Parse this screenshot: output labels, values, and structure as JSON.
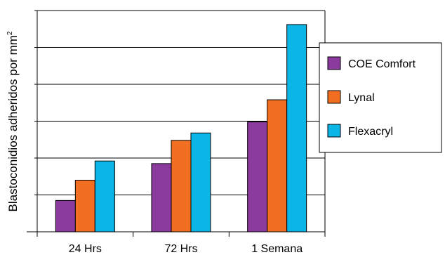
{
  "chart_data": {
    "type": "bar",
    "title": "",
    "xlabel": "",
    "ylabel": "Blastoconidios adheridos por mm",
    "ylabel_superscript": "2",
    "categories": [
      "24 Hrs",
      "72 Hrs",
      "1 Semana"
    ],
    "ylim": [
      0,
      6
    ],
    "y_ticks": [
      0,
      1,
      2,
      3,
      4,
      5,
      6
    ],
    "y_tick_labels_shown": false,
    "grid": true,
    "legend_position": "right",
    "series": [
      {
        "name": "COE Comfort",
        "color": "#8B3A9E",
        "values": [
          0.85,
          1.85,
          2.98
        ]
      },
      {
        "name": "Lynal",
        "color": "#F26F21",
        "values": [
          1.4,
          2.48,
          3.58
        ]
      },
      {
        "name": "Flexacryl",
        "color": "#0BB5E6",
        "values": [
          1.92,
          2.68,
          5.62
        ]
      }
    ]
  }
}
